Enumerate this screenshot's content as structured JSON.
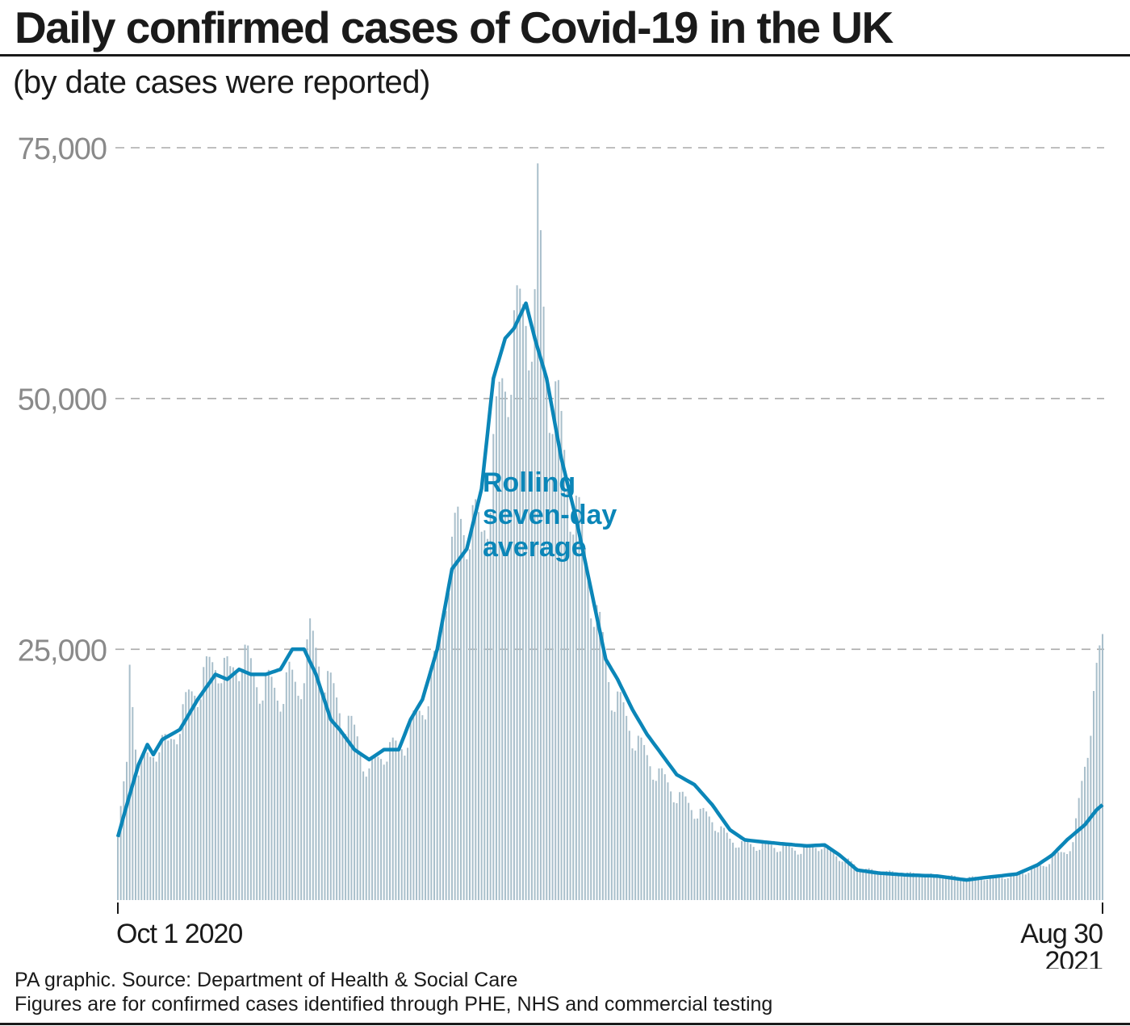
{
  "header": {
    "title": "Daily confirmed cases of Covid-19 in the UK",
    "subtitle": "(by date cases were reported)"
  },
  "footer": {
    "source": "PA graphic. Source: Department of Health & Social Care",
    "note": "Figures are for confirmed cases identified through PHE, NHS and commercial testing"
  },
  "colors": {
    "bar": "#a9bfcb",
    "line": "#0b86b8",
    "grid": "#aaaaaa",
    "tick_label": "#8a8a8a",
    "axis": "#1a1a1a",
    "text": "#1a1a1a"
  },
  "chart_data": {
    "type": "bar",
    "title": "Daily confirmed cases of Covid-19 in the UK",
    "subtitle": "(by date cases were reported)",
    "x_range": [
      "2020-10-01",
      "2021-08-30"
    ],
    "ylim": [
      0,
      75000
    ],
    "yticks": [
      25000,
      50000,
      75000
    ],
    "ytick_labels": [
      "25,000",
      "50,000",
      "75,000"
    ],
    "grid": "horizontal dashed",
    "xtick_labels": [
      {
        "date": "2020-10-01",
        "lines": [
          "Oct 1 2020"
        ]
      },
      {
        "date": "2021-08-30",
        "lines": [
          "Aug 30",
          "2021"
        ]
      }
    ],
    "series": [
      {
        "type": "bar",
        "description_keyframes_note": "daily cases",
        "keyframes": [
          [
            "2020-10-01",
            6900
          ],
          [
            "2020-10-04",
            13000
          ],
          [
            "2020-10-05",
            23000
          ],
          [
            "2020-10-08",
            13500
          ],
          [
            "2020-10-12",
            14000
          ],
          [
            "2020-10-15",
            16000
          ],
          [
            "2020-10-18",
            15000
          ],
          [
            "2020-10-22",
            18000
          ],
          [
            "2020-10-27",
            21000
          ],
          [
            "2020-10-31",
            22500
          ],
          [
            "2020-11-04",
            24000
          ],
          [
            "2020-11-08",
            22000
          ],
          [
            "2020-11-12",
            25000
          ],
          [
            "2020-11-16",
            22000
          ],
          [
            "2020-11-20",
            21500
          ],
          [
            "2020-11-24",
            20500
          ],
          [
            "2020-11-28",
            22000
          ],
          [
            "2020-12-01",
            21000
          ],
          [
            "2020-12-05",
            26000
          ],
          [
            "2020-12-08",
            24000
          ],
          [
            "2020-12-12",
            21000
          ],
          [
            "2020-12-17",
            18000
          ],
          [
            "2020-12-21",
            16000
          ],
          [
            "2020-12-25",
            12500
          ],
          [
            "2020-12-30",
            15000
          ],
          [
            "2021-01-04",
            15000
          ],
          [
            "2021-01-08",
            17000
          ],
          [
            "2021-01-12",
            19000
          ],
          [
            "2021-01-17",
            24000
          ],
          [
            "2021-01-20",
            32000
          ],
          [
            "2021-01-24",
            37000
          ],
          [
            "2021-01-28",
            38000
          ],
          [
            "2021-02-01",
            36000
          ],
          [
            "2021-02-04",
            42000
          ],
          [
            "2021-02-08",
            51000
          ],
          [
            "2021-02-12",
            56000
          ],
          [
            "2021-02-16",
            59000
          ],
          [
            "2021-02-19",
            58000
          ],
          [
            "2021-02-20",
            68000
          ],
          [
            "2021-02-23",
            53000
          ],
          [
            "2021-02-27",
            48000
          ],
          [
            "2021-03-02",
            42000
          ],
          [
            "2021-03-07",
            36000
          ],
          [
            "2021-03-12",
            28000
          ],
          [
            "2021-03-17",
            21000
          ],
          [
            "2021-03-22",
            18000
          ],
          [
            "2021-03-27",
            15000
          ],
          [
            "2021-04-02",
            12500
          ],
          [
            "2021-04-08",
            10500
          ],
          [
            "2021-04-14",
            9000
          ],
          [
            "2021-04-20",
            8000
          ],
          [
            "2021-04-26",
            6000
          ],
          [
            "2021-05-01",
            5500
          ],
          [
            "2021-05-10",
            5400
          ],
          [
            "2021-05-20",
            5000
          ],
          [
            "2021-05-27",
            5500
          ],
          [
            "2021-06-01",
            4500
          ],
          [
            "2021-06-10",
            3000
          ],
          [
            "2021-06-20",
            2700
          ],
          [
            "2021-07-01",
            2500
          ],
          [
            "2021-07-15",
            2200
          ],
          [
            "2021-07-25",
            2200
          ],
          [
            "2021-08-01",
            2500
          ],
          [
            "2021-08-10",
            3500
          ],
          [
            "2021-08-20",
            5500
          ],
          [
            "2021-08-30",
            26000
          ]
        ]
      },
      {
        "type": "line",
        "name": "Rolling seven-day average",
        "keyframes": [
          [
            "2020-10-01",
            6300
          ],
          [
            "2020-10-05",
            10500
          ],
          [
            "2020-10-08",
            13500
          ],
          [
            "2020-10-11",
            15500
          ],
          [
            "2020-10-13",
            14500
          ],
          [
            "2020-10-16",
            16000
          ],
          [
            "2020-10-22",
            17000
          ],
          [
            "2020-10-28",
            20000
          ],
          [
            "2020-11-03",
            22500
          ],
          [
            "2020-11-07",
            22000
          ],
          [
            "2020-11-11",
            23000
          ],
          [
            "2020-11-15",
            22500
          ],
          [
            "2020-11-20",
            22500
          ],
          [
            "2020-11-25",
            23000
          ],
          [
            "2020-11-29",
            25000
          ],
          [
            "2020-12-03",
            25000
          ],
          [
            "2020-12-07",
            22500
          ],
          [
            "2020-12-12",
            18000
          ],
          [
            "2020-12-15",
            17000
          ],
          [
            "2020-12-20",
            15000
          ],
          [
            "2020-12-25",
            14000
          ],
          [
            "2020-12-30",
            15000
          ],
          [
            "2021-01-04",
            15000
          ],
          [
            "2021-01-08",
            18000
          ],
          [
            "2021-01-12",
            20000
          ],
          [
            "2021-01-17",
            25000
          ],
          [
            "2021-01-22",
            33000
          ],
          [
            "2021-01-27",
            35000
          ],
          [
            "2021-02-01",
            41000
          ],
          [
            "2021-02-05",
            52000
          ],
          [
            "2021-02-09",
            56000
          ],
          [
            "2021-02-12",
            57000
          ],
          [
            "2021-02-16",
            59500
          ],
          [
            "2021-02-19",
            56000
          ],
          [
            "2021-02-23",
            52000
          ],
          [
            "2021-02-28",
            44000
          ],
          [
            "2021-03-05",
            38000
          ],
          [
            "2021-03-10",
            31000
          ],
          [
            "2021-03-15",
            24000
          ],
          [
            "2021-03-19",
            22000
          ],
          [
            "2021-03-24",
            19000
          ],
          [
            "2021-03-29",
            16500
          ],
          [
            "2021-04-03",
            14500
          ],
          [
            "2021-04-08",
            12500
          ],
          [
            "2021-04-14",
            11500
          ],
          [
            "2021-04-20",
            9500
          ],
          [
            "2021-04-26",
            7000
          ],
          [
            "2021-05-01",
            6000
          ],
          [
            "2021-05-07",
            5800
          ],
          [
            "2021-05-14",
            5600
          ],
          [
            "2021-05-22",
            5400
          ],
          [
            "2021-05-28",
            5500
          ],
          [
            "2021-06-02",
            4500
          ],
          [
            "2021-06-08",
            3000
          ],
          [
            "2021-06-15",
            2700
          ],
          [
            "2021-06-25",
            2500
          ],
          [
            "2021-07-05",
            2400
          ],
          [
            "2021-07-15",
            2000
          ],
          [
            "2021-07-20",
            2200
          ],
          [
            "2021-08-01",
            2600
          ],
          [
            "2021-08-08",
            3500
          ],
          [
            "2021-08-13",
            4500
          ],
          [
            "2021-08-18",
            6000
          ],
          [
            "2021-08-24",
            7500
          ],
          [
            "2021-08-28",
            9000
          ],
          [
            "2021-08-30",
            9500
          ]
        ]
      }
    ],
    "annotations": [
      {
        "text_lines": [
          "Rolling",
          "seven-day",
          "average"
        ],
        "near": "right of winter peak",
        "color": "#0b86b8"
      }
    ]
  }
}
